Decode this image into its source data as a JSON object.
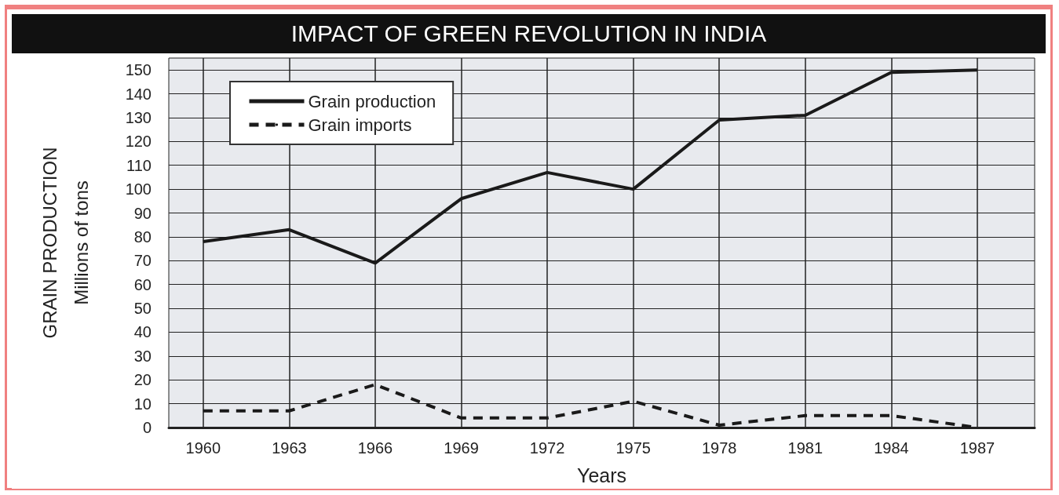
{
  "chart_data": {
    "type": "line",
    "title": "IMPACT OF GREEN REVOLUTION IN INDIA",
    "xlabel": "Years",
    "ylabel": "GRAIN PRODUCTION\nMillions of tons",
    "x": [
      1960,
      1963,
      1966,
      1969,
      1972,
      1975,
      1978,
      1981,
      1984,
      1987
    ],
    "xlim": [
      1958.8,
      1989
    ],
    "xticks": [
      1960,
      1963,
      1966,
      1969,
      1972,
      1975,
      1978,
      1981,
      1984,
      1987
    ],
    "ylim": [
      0,
      155
    ],
    "yticks": [
      0,
      10,
      20,
      30,
      40,
      50,
      60,
      70,
      80,
      90,
      100,
      110,
      120,
      130,
      140,
      150
    ],
    "series": [
      {
        "name": "Grain production",
        "color": "#1a1a1a",
        "line_style": "solid",
        "values": [
          78,
          83,
          69,
          96,
          107,
          100,
          129,
          131,
          149,
          150
        ]
      },
      {
        "name": "Grain imports",
        "color": "#1a1a1a",
        "line_style": "dashed",
        "values": [
          7,
          7,
          18,
          4,
          4,
          11,
          1,
          5,
          5,
          0
        ]
      }
    ],
    "grid": true,
    "legend": "top left",
    "marker": "none"
  }
}
